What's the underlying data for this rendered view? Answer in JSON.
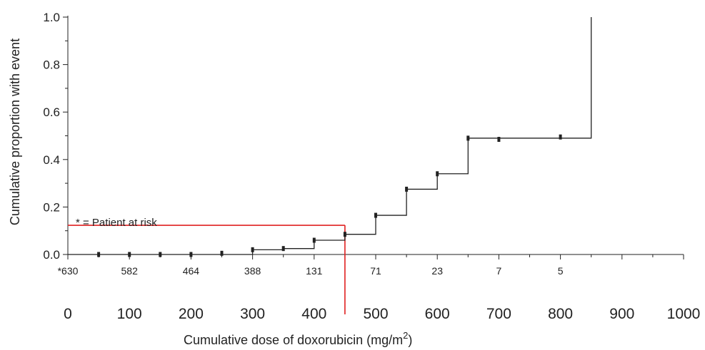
{
  "chart_data": {
    "type": "line",
    "xlabel": "Cumulative dose of doxorubicin (mg/m",
    "xlabel_sup": "2",
    "xlabel_close": ")",
    "ylabel": "Cumulative proportion with event",
    "xlim": [
      0,
      1000
    ],
    "ylim": [
      0,
      1.0
    ],
    "x_ticks": [
      "0",
      "100",
      "200",
      "300",
      "400",
      "500",
      "600",
      "700",
      "800",
      "900",
      "1000"
    ],
    "x_tick_values": [
      0,
      100,
      200,
      300,
      400,
      500,
      600,
      700,
      800,
      900,
      1000
    ],
    "y_ticks": [
      "0.0",
      "0.2",
      "0.4",
      "0.6",
      "0.8",
      "1.0"
    ],
    "y_tick_values": [
      0,
      0.2,
      0.4,
      0.6,
      0.8,
      1.0
    ],
    "series": [
      {
        "step": true,
        "color": "#222222",
        "x": [
          0,
          300,
          350,
          400,
          450,
          500,
          550,
          600,
          650,
          850,
          850
        ],
        "y": [
          0.0,
          0.02,
          0.025,
          0.06,
          0.085,
          0.165,
          0.275,
          0.34,
          0.49,
          0.49,
          1.0
        ]
      }
    ],
    "censor_marks": [
      {
        "x": 50,
        "y": 0.0
      },
      {
        "x": 100,
        "y": 0.0
      },
      {
        "x": 150,
        "y": 0.0
      },
      {
        "x": 200,
        "y": 0.0
      },
      {
        "x": 250,
        "y": 0.005
      },
      {
        "x": 300,
        "y": 0.02
      },
      {
        "x": 350,
        "y": 0.025
      },
      {
        "x": 400,
        "y": 0.06
      },
      {
        "x": 450,
        "y": 0.085
      },
      {
        "x": 500,
        "y": 0.165
      },
      {
        "x": 550,
        "y": 0.275
      },
      {
        "x": 600,
        "y": 0.34
      },
      {
        "x": 650,
        "y": 0.49
      },
      {
        "x": 700,
        "y": 0.485
      },
      {
        "x": 800,
        "y": 0.495
      }
    ],
    "patients_at_risk": [
      {
        "x": 0,
        "label": "*630"
      },
      {
        "x": 100,
        "label": "582"
      },
      {
        "x": 200,
        "label": "464"
      },
      {
        "x": 300,
        "label": "388"
      },
      {
        "x": 400,
        "label": "131"
      },
      {
        "x": 500,
        "label": "71"
      },
      {
        "x": 600,
        "label": "23"
      },
      {
        "x": 700,
        "label": "7"
      },
      {
        "x": 800,
        "label": "5"
      }
    ],
    "annotation": "* = Patient at risk",
    "reference_lines": {
      "color": "#e02020",
      "y_value": 0.06,
      "x_value": 450
    },
    "grid": false
  }
}
